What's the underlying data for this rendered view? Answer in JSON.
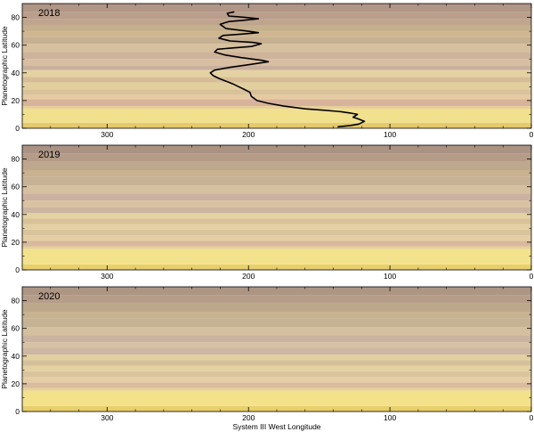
{
  "chart_data": [
    {
      "type": "heatmap",
      "title": "2018",
      "xlabel": "",
      "ylabel": "Planetographic Latitude",
      "xlim": [
        360,
        0
      ],
      "ylim": [
        0,
        90
      ],
      "x_ticks": [
        "300",
        "200",
        "100",
        "0"
      ],
      "y_ticks": [
        "0",
        "20",
        "40",
        "60",
        "80"
      ],
      "bands": [
        {
          "lat_from": 0,
          "lat_to": 4,
          "color": "#e6c96a"
        },
        {
          "lat_from": 4,
          "lat_to": 14,
          "color": "#f1e08c"
        },
        {
          "lat_from": 14,
          "lat_to": 16,
          "color": "#e6d095"
        },
        {
          "lat_from": 16,
          "lat_to": 21,
          "color": "#d6b39a"
        },
        {
          "lat_from": 21,
          "lat_to": 24,
          "color": "#e6caa2"
        },
        {
          "lat_from": 24,
          "lat_to": 28,
          "color": "#d9c29a"
        },
        {
          "lat_from": 28,
          "lat_to": 33,
          "color": "#e2cf9e"
        },
        {
          "lat_from": 33,
          "lat_to": 37,
          "color": "#d7bd96"
        },
        {
          "lat_from": 37,
          "lat_to": 42,
          "color": "#e4d2a2"
        },
        {
          "lat_from": 42,
          "lat_to": 45,
          "color": "#c9b09e"
        },
        {
          "lat_from": 45,
          "lat_to": 50,
          "color": "#d8bfa1"
        },
        {
          "lat_from": 50,
          "lat_to": 55,
          "color": "#ceb39b"
        },
        {
          "lat_from": 55,
          "lat_to": 61,
          "color": "#d6c09e"
        },
        {
          "lat_from": 61,
          "lat_to": 66,
          "color": "#c7b092"
        },
        {
          "lat_from": 66,
          "lat_to": 70,
          "color": "#cfb68f"
        },
        {
          "lat_from": 70,
          "lat_to": 74,
          "color": "#c5b08c"
        },
        {
          "lat_from": 74,
          "lat_to": 79,
          "color": "#bfa58e"
        },
        {
          "lat_from": 79,
          "lat_to": 84,
          "color": "#b99e8c"
        },
        {
          "lat_from": 84,
          "lat_to": 90,
          "color": "#b09686"
        }
      ],
      "profile_line": {
        "color": "#000000",
        "points": [
          [
            137,
            1
          ],
          [
            128,
            2
          ],
          [
            122,
            3
          ],
          [
            118,
            5
          ],
          [
            123,
            7
          ],
          [
            126,
            8
          ],
          [
            123,
            10
          ],
          [
            128,
            11
          ],
          [
            135,
            12
          ],
          [
            146,
            13
          ],
          [
            160,
            14
          ],
          [
            175,
            16
          ],
          [
            186,
            18
          ],
          [
            194,
            20
          ],
          [
            198,
            23
          ],
          [
            199,
            26
          ],
          [
            203,
            28
          ],
          [
            207,
            30
          ],
          [
            211,
            32
          ],
          [
            216,
            34
          ],
          [
            221,
            36
          ],
          [
            225,
            38
          ],
          [
            227,
            40
          ],
          [
            224,
            42
          ],
          [
            213,
            44
          ],
          [
            199,
            46
          ],
          [
            186,
            48
          ],
          [
            190,
            49
          ],
          [
            205,
            51
          ],
          [
            217,
            53
          ],
          [
            224,
            55
          ],
          [
            222,
            57
          ],
          [
            211,
            58
          ],
          [
            198,
            59
          ],
          [
            191,
            61
          ],
          [
            197,
            62
          ],
          [
            213,
            63
          ],
          [
            221,
            65
          ],
          [
            218,
            67
          ],
          [
            204,
            68
          ],
          [
            193,
            69
          ],
          [
            200,
            70
          ],
          [
            216,
            72
          ],
          [
            220,
            75
          ],
          [
            214,
            77
          ],
          [
            203,
            78
          ],
          [
            193,
            79
          ],
          [
            202,
            80
          ],
          [
            214,
            81
          ],
          [
            215,
            83
          ],
          [
            210,
            84
          ]
        ]
      }
    },
    {
      "type": "heatmap",
      "title": "2019",
      "xlabel": "",
      "ylabel": "Planetographic Latitude",
      "xlim": [
        360,
        0
      ],
      "ylim": [
        0,
        90
      ],
      "x_ticks": [
        "300",
        "200",
        "100",
        "0"
      ],
      "y_ticks": [
        "0",
        "20",
        "40",
        "60",
        "80"
      ],
      "bands": [
        {
          "lat_from": 0,
          "lat_to": 4,
          "color": "#e8cf6c"
        },
        {
          "lat_from": 4,
          "lat_to": 15,
          "color": "#f3e28c"
        },
        {
          "lat_from": 15,
          "lat_to": 17,
          "color": "#e6d197"
        },
        {
          "lat_from": 17,
          "lat_to": 21,
          "color": "#d8b99d"
        },
        {
          "lat_from": 21,
          "lat_to": 25,
          "color": "#e5cda4"
        },
        {
          "lat_from": 25,
          "lat_to": 29,
          "color": "#d9c39c"
        },
        {
          "lat_from": 29,
          "lat_to": 33,
          "color": "#e3d0a0"
        },
        {
          "lat_from": 33,
          "lat_to": 37,
          "color": "#d8c199"
        },
        {
          "lat_from": 37,
          "lat_to": 41,
          "color": "#e3d2a3"
        },
        {
          "lat_from": 41,
          "lat_to": 45,
          "color": "#cbb4a0"
        },
        {
          "lat_from": 45,
          "lat_to": 50,
          "color": "#d9c2a2"
        },
        {
          "lat_from": 50,
          "lat_to": 55,
          "color": "#cbb2a0"
        },
        {
          "lat_from": 55,
          "lat_to": 61,
          "color": "#d5c0a0"
        },
        {
          "lat_from": 61,
          "lat_to": 67,
          "color": "#c8b295"
        },
        {
          "lat_from": 67,
          "lat_to": 72,
          "color": "#c9b28f"
        },
        {
          "lat_from": 72,
          "lat_to": 78,
          "color": "#bea88d"
        },
        {
          "lat_from": 78,
          "lat_to": 84,
          "color": "#b49c89"
        },
        {
          "lat_from": 84,
          "lat_to": 90,
          "color": "#ab9384"
        }
      ]
    },
    {
      "type": "heatmap",
      "title": "2020",
      "xlabel": "System III West Longitude",
      "ylabel": "Planetographic Latitude",
      "xlim": [
        360,
        0
      ],
      "ylim": [
        0,
        90
      ],
      "x_ticks": [
        "300",
        "200",
        "100",
        "0"
      ],
      "y_ticks": [
        "0",
        "20",
        "40",
        "60",
        "80"
      ],
      "bands": [
        {
          "lat_from": 0,
          "lat_to": 4,
          "color": "#e8cf6c"
        },
        {
          "lat_from": 4,
          "lat_to": 15,
          "color": "#f3e28a"
        },
        {
          "lat_from": 15,
          "lat_to": 17,
          "color": "#e7d297"
        },
        {
          "lat_from": 17,
          "lat_to": 21,
          "color": "#d9bb9e"
        },
        {
          "lat_from": 21,
          "lat_to": 25,
          "color": "#e5cea5"
        },
        {
          "lat_from": 25,
          "lat_to": 29,
          "color": "#dac49e"
        },
        {
          "lat_from": 29,
          "lat_to": 33,
          "color": "#e4d1a2"
        },
        {
          "lat_from": 33,
          "lat_to": 37,
          "color": "#d6c09a"
        },
        {
          "lat_from": 37,
          "lat_to": 41,
          "color": "#e2d0a2"
        },
        {
          "lat_from": 41,
          "lat_to": 46,
          "color": "#cdb6a2"
        },
        {
          "lat_from": 46,
          "lat_to": 50,
          "color": "#d8c1a2"
        },
        {
          "lat_from": 50,
          "lat_to": 55,
          "color": "#cab3a0"
        },
        {
          "lat_from": 55,
          "lat_to": 61,
          "color": "#d4bf9f"
        },
        {
          "lat_from": 61,
          "lat_to": 67,
          "color": "#c6b295"
        },
        {
          "lat_from": 67,
          "lat_to": 72,
          "color": "#c8b290"
        },
        {
          "lat_from": 72,
          "lat_to": 78,
          "color": "#bea88c"
        },
        {
          "lat_from": 78,
          "lat_to": 84,
          "color": "#b59d89"
        },
        {
          "lat_from": 84,
          "lat_to": 90,
          "color": "#ad9584"
        }
      ]
    }
  ]
}
